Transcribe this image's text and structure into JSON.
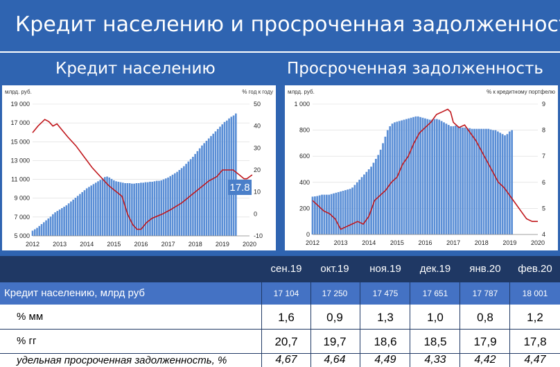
{
  "header": {
    "title": "Кредит населению и просроченная задолженность"
  },
  "panels": {
    "left_title": "Кредит населению",
    "right_title": "Просроченная задолженность"
  },
  "chart_data": [
    {
      "type": "bar+line",
      "left_unit": "млрд. руб.",
      "right_unit": "% год к году",
      "x_ticks": [
        "2012",
        "2013",
        "2014",
        "2015",
        "2016",
        "2017",
        "2018",
        "2019",
        "2020"
      ],
      "y_left_ticks": [
        "19 000",
        "17 000",
        "15 000",
        "13 000",
        "11 000",
        "9 000",
        "7 000",
        "5 000"
      ],
      "y_right_ticks": [
        "50",
        "40",
        "30",
        "20",
        "10",
        "0",
        "-10"
      ],
      "ylim_left": [
        5000,
        19000
      ],
      "ylim_right": [
        -10,
        50
      ],
      "bar_color": "#5b8fd6",
      "line_color": "#c0161b",
      "callout": "17.8",
      "bars": {
        "x_start": 2012.0,
        "step": 0.0833,
        "values": [
          5550,
          5700,
          5850,
          6050,
          6250,
          6450,
          6650,
          6850,
          7050,
          7300,
          7500,
          7650,
          7800,
          7950,
          8100,
          8250,
          8450,
          8650,
          8850,
          9050,
          9250,
          9450,
          9650,
          9850,
          10050,
          10200,
          10350,
          10500,
          10650,
          10800,
          10950,
          11100,
          11250,
          11300,
          11200,
          11050,
          10900,
          10800,
          10750,
          10700,
          10650,
          10600,
          10600,
          10600,
          10550,
          10550,
          10600,
          10600,
          10650,
          10650,
          10700,
          10700,
          10750,
          10750,
          10800,
          10850,
          10850,
          10900,
          11000,
          11100,
          11200,
          11350,
          11500,
          11650,
          11800,
          12000,
          12200,
          12400,
          12650,
          12900,
          13150,
          13400,
          13700,
          14000,
          14300,
          14600,
          14850,
          15100,
          15350,
          15600,
          15850,
          16100,
          16350,
          16600,
          16850,
          17100,
          17250,
          17475,
          17651,
          17787,
          18001
        ]
      },
      "line": {
        "x": [
          2012.0,
          2012.2,
          2012.45,
          2012.6,
          2012.75,
          2012.9,
          2013.1,
          2013.3,
          2013.6,
          2013.9,
          2014.2,
          2014.5,
          2014.8,
          2015.1,
          2015.3,
          2015.5,
          2015.7,
          2015.85,
          2016.0,
          2016.2,
          2016.4,
          2016.8,
          2017.1,
          2017.5,
          2017.9,
          2018.2,
          2018.5,
          2018.8,
          2019.0,
          2019.2,
          2019.4,
          2019.6,
          2019.8,
          2019.9,
          2020.1
        ],
        "y": [
          37,
          40,
          43,
          42,
          40,
          41,
          38,
          35,
          31,
          26,
          21,
          17,
          13,
          10,
          8,
          0,
          -5,
          -7,
          -7,
          -4,
          -2,
          0,
          2,
          5,
          9,
          12,
          15,
          17,
          20,
          20,
          20,
          18,
          16,
          16,
          17.8
        ]
      }
    },
    {
      "type": "bar+line",
      "left_unit": "млрд. руб.",
      "right_unit": "% к кредитному портфелю",
      "x_ticks": [
        "2012",
        "2013",
        "2014",
        "2015",
        "2016",
        "2017",
        "2018",
        "2019",
        "2020"
      ],
      "y_left_ticks": [
        "1 000",
        "800",
        "600",
        "400",
        "200",
        "0"
      ],
      "y_right_ticks": [
        "9",
        "8",
        "7",
        "6",
        "5",
        "4"
      ],
      "ylim_left": [
        0,
        1000
      ],
      "ylim_right": [
        4,
        9
      ],
      "bar_color": "#5b8fd6",
      "line_color": "#c0161b",
      "bars": {
        "x_start": 2012.0,
        "step": 0.0833,
        "values": [
          290,
          292,
          295,
          300,
          305,
          305,
          305,
          305,
          310,
          315,
          320,
          325,
          330,
          335,
          340,
          345,
          350,
          360,
          380,
          400,
          420,
          440,
          460,
          480,
          500,
          520,
          550,
          580,
          610,
          650,
          700,
          750,
          800,
          830,
          850,
          860,
          865,
          870,
          875,
          880,
          885,
          890,
          895,
          900,
          905,
          905,
          900,
          895,
          890,
          885,
          880,
          880,
          885,
          885,
          880,
          870,
          860,
          850,
          840,
          830,
          830,
          835,
          830,
          825,
          820,
          820,
          815,
          815,
          810,
          810,
          810,
          810,
          810,
          810,
          810,
          810,
          805,
          800,
          800,
          790,
          780,
          770,
          760,
          770,
          790,
          800
        ]
      },
      "line": {
        "x": [
          2012.0,
          2012.2,
          2012.4,
          2012.6,
          2012.8,
          2013.0,
          2013.2,
          2013.4,
          2013.6,
          2013.8,
          2014.0,
          2014.2,
          2014.4,
          2014.6,
          2014.8,
          2015.0,
          2015.2,
          2015.4,
          2015.6,
          2015.8,
          2016.0,
          2016.2,
          2016.4,
          2016.6,
          2016.8,
          2016.9,
          2017.0,
          2017.2,
          2017.4,
          2017.6,
          2017.8,
          2018.0,
          2018.2,
          2018.4,
          2018.6,
          2018.8,
          2019.0,
          2019.2,
          2019.4,
          2019.6,
          2019.8,
          2020.0
        ],
        "y": [
          5.3,
          5.1,
          4.9,
          4.8,
          4.6,
          4.2,
          4.3,
          4.4,
          4.5,
          4.4,
          4.7,
          5.3,
          5.5,
          5.7,
          6.0,
          6.2,
          6.7,
          7.0,
          7.5,
          7.9,
          8.1,
          8.3,
          8.6,
          8.7,
          8.8,
          8.7,
          8.3,
          8.1,
          8.2,
          7.9,
          7.6,
          7.2,
          6.8,
          6.4,
          6.0,
          5.8,
          5.5,
          5.2,
          4.9,
          4.6,
          4.5,
          4.5
        ]
      }
    }
  ],
  "table": {
    "columns": [
      "сен.19",
      "окт.19",
      "ноя.19",
      "дек.19",
      "янв.20",
      "фев.20"
    ],
    "rows": [
      {
        "label": "Кредит населению, млрд руб",
        "values": [
          "17 104",
          "17 250",
          "17 475",
          "17 651",
          "17 787",
          "18 001"
        ]
      },
      {
        "label": "% мм",
        "values": [
          "1,6",
          "0,9",
          "1,3",
          "1,0",
          "0,8",
          "1,2"
        ]
      },
      {
        "label": "% гг",
        "values": [
          "20,7",
          "19,7",
          "18,6",
          "18,5",
          "17,9",
          "17,8"
        ]
      },
      {
        "label": "удельная просроченная задолженность, %",
        "values": [
          "4,67",
          "4,64",
          "4,49",
          "4,33",
          "4,42",
          "4,47"
        ]
      }
    ]
  }
}
